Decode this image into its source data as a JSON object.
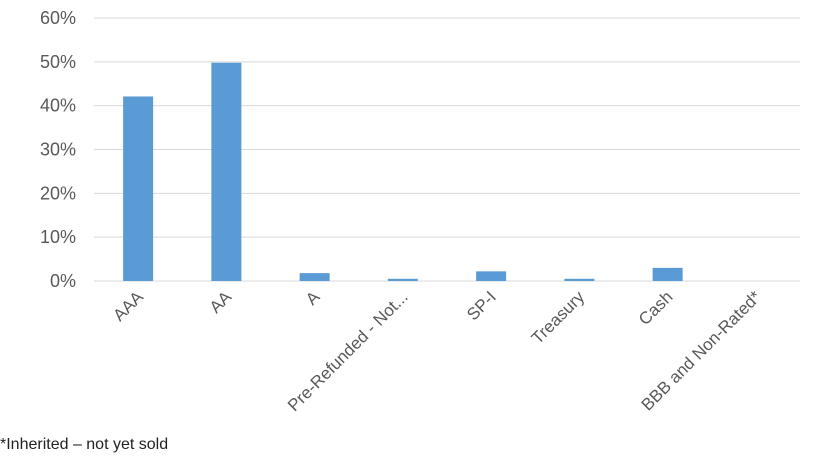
{
  "chart_data": {
    "type": "bar",
    "categories": [
      "AAA",
      "AA",
      "A",
      "Pre-Refunded - Not...",
      "SP-I",
      "Treasury",
      "Cash",
      "BBB and Non-Rated*"
    ],
    "values": [
      42.1,
      49.8,
      1.8,
      0.5,
      2.2,
      0.5,
      3.0,
      0.0
    ],
    "ylim": [
      0,
      60
    ],
    "yticks": [
      0,
      10,
      20,
      30,
      40,
      50,
      60
    ],
    "ytick_labels": [
      "0%",
      "10%",
      "20%",
      "30%",
      "40%",
      "50%",
      "60%"
    ],
    "grid": true,
    "bar_color": "#5b9bd5",
    "grid_color": "#d9d9d9"
  },
  "footnote": "*Inherited – not yet sold"
}
